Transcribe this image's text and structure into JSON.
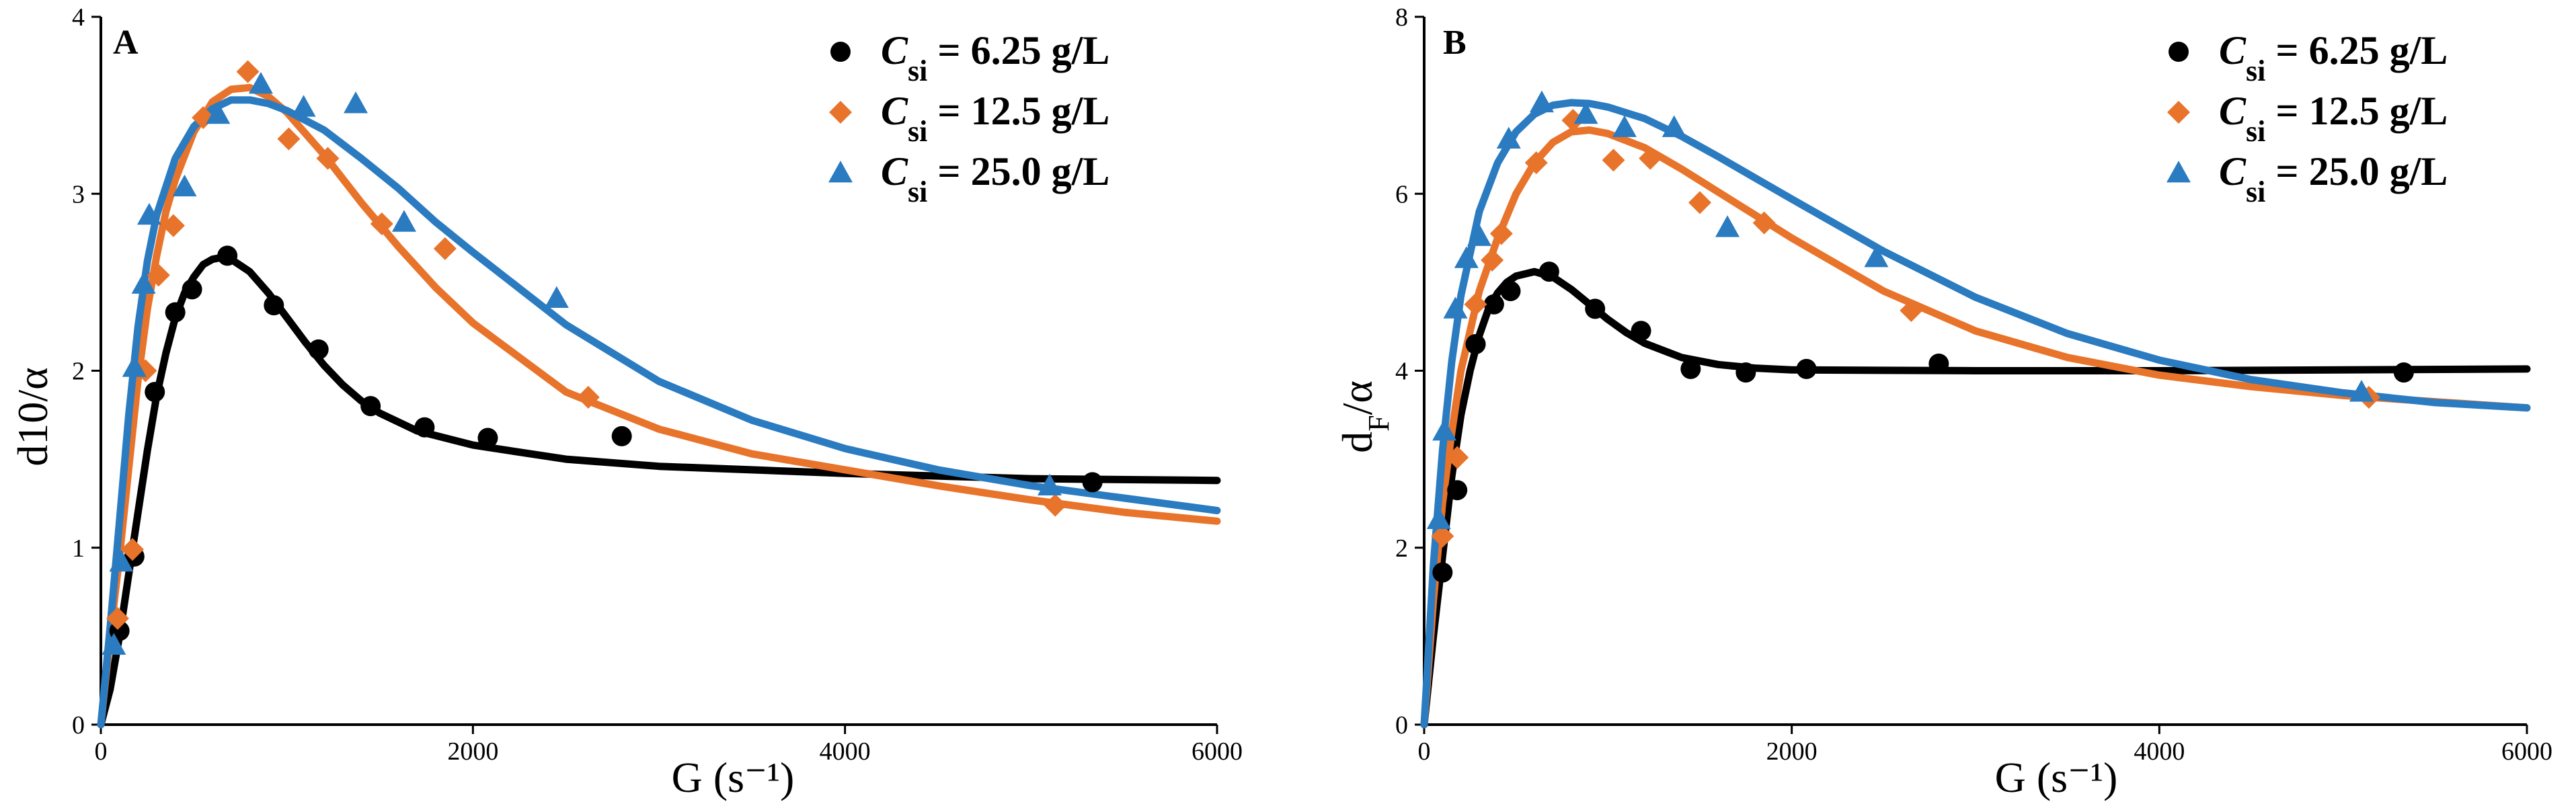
{
  "chart_data": [
    {
      "panel": "A",
      "type": "scatter",
      "xlabel": "G (s⁻¹)",
      "ylabel": "d10/α",
      "xlim": [
        0,
        6000
      ],
      "ylim": [
        0,
        4
      ],
      "xticks": [
        0,
        2000,
        4000,
        6000
      ],
      "yticks": [
        0,
        1,
        2,
        3,
        4
      ],
      "legend_position": "top-right",
      "series": [
        {
          "name": "Csi = 6.25 g/L",
          "legend": {
            "symbol": "C",
            "sub": "si",
            "rest": " = 6.25 g/L"
          },
          "color": "#000000",
          "marker": "circle",
          "points": [
            [
              100,
              0.53
            ],
            [
              180,
              0.95
            ],
            [
              290,
              1.88
            ],
            [
              400,
              2.33
            ],
            [
              490,
              2.46
            ],
            [
              680,
              2.65
            ],
            [
              930,
              2.37
            ],
            [
              1170,
              2.12
            ],
            [
              1450,
              1.8
            ],
            [
              1740,
              1.68
            ],
            [
              2080,
              1.62
            ],
            [
              2800,
              1.63
            ],
            [
              5330,
              1.37
            ]
          ],
          "fit": [
            [
              0,
              0
            ],
            [
              50,
              0.2
            ],
            [
              100,
              0.5
            ],
            [
              150,
              0.85
            ],
            [
              200,
              1.2
            ],
            [
              250,
              1.55
            ],
            [
              300,
              1.86
            ],
            [
              350,
              2.1
            ],
            [
              400,
              2.3
            ],
            [
              450,
              2.44
            ],
            [
              500,
              2.53
            ],
            [
              550,
              2.6
            ],
            [
              600,
              2.63
            ],
            [
              650,
              2.64
            ],
            [
              700,
              2.63
            ],
            [
              800,
              2.56
            ],
            [
              900,
              2.44
            ],
            [
              1000,
              2.3
            ],
            [
              1100,
              2.16
            ],
            [
              1200,
              2.03
            ],
            [
              1300,
              1.92
            ],
            [
              1400,
              1.83
            ],
            [
              1500,
              1.76
            ],
            [
              1700,
              1.66
            ],
            [
              2000,
              1.58
            ],
            [
              2500,
              1.5
            ],
            [
              3000,
              1.46
            ],
            [
              4000,
              1.42
            ],
            [
              5000,
              1.39
            ],
            [
              6000,
              1.38
            ]
          ]
        },
        {
          "name": "Csi = 12.5 g/L",
          "legend": {
            "symbol": "C",
            "sub": "si",
            "rest": " = 12.5 g/L"
          },
          "color": "#e8732a",
          "marker": "diamond",
          "points": [
            [
              90,
              0.6
            ],
            [
              170,
              0.99
            ],
            [
              240,
              2.0
            ],
            [
              310,
              2.54
            ],
            [
              390,
              2.82
            ],
            [
              550,
              3.43
            ],
            [
              790,
              3.69
            ],
            [
              1010,
              3.31
            ],
            [
              1220,
              3.2
            ],
            [
              1510,
              2.83
            ],
            [
              1850,
              2.69
            ],
            [
              2620,
              1.85
            ],
            [
              5130,
              1.24
            ]
          ],
          "fit": [
            [
              0,
              0
            ],
            [
              50,
              0.5
            ],
            [
              100,
              0.95
            ],
            [
              150,
              1.45
            ],
            [
              200,
              1.95
            ],
            [
              250,
              2.35
            ],
            [
              300,
              2.65
            ],
            [
              350,
              2.9
            ],
            [
              400,
              3.08
            ],
            [
              500,
              3.35
            ],
            [
              600,
              3.52
            ],
            [
              700,
              3.59
            ],
            [
              800,
              3.6
            ],
            [
              900,
              3.55
            ],
            [
              1000,
              3.46
            ],
            [
              1200,
              3.22
            ],
            [
              1400,
              2.95
            ],
            [
              1600,
              2.7
            ],
            [
              1800,
              2.47
            ],
            [
              2000,
              2.27
            ],
            [
              2500,
              1.88
            ],
            [
              3000,
              1.67
            ],
            [
              3500,
              1.53
            ],
            [
              4000,
              1.44
            ],
            [
              4500,
              1.35
            ],
            [
              5000,
              1.27
            ],
            [
              5500,
              1.2
            ],
            [
              6000,
              1.15
            ]
          ]
        },
        {
          "name": "Csi = 25.0 g/L",
          "legend": {
            "symbol": "C",
            "sub": "si",
            "rest": " = 25.0 g/L"
          },
          "color": "#2b7bc1",
          "marker": "triangle",
          "points": [
            [
              70,
              0.45
            ],
            [
              110,
              0.92
            ],
            [
              180,
              2.02
            ],
            [
              230,
              2.49
            ],
            [
              260,
              2.88
            ],
            [
              450,
              3.04
            ],
            [
              630,
              3.45
            ],
            [
              860,
              3.62
            ],
            [
              1090,
              3.49
            ],
            [
              1370,
              3.51
            ],
            [
              1630,
              2.84
            ],
            [
              2450,
              2.41
            ],
            [
              5100,
              1.35
            ]
          ],
          "fit": [
            [
              0,
              0
            ],
            [
              50,
              0.55
            ],
            [
              100,
              1.15
            ],
            [
              150,
              1.75
            ],
            [
              200,
              2.25
            ],
            [
              250,
              2.62
            ],
            [
              300,
              2.88
            ],
            [
              400,
              3.2
            ],
            [
              500,
              3.38
            ],
            [
              600,
              3.48
            ],
            [
              700,
              3.53
            ],
            [
              800,
              3.53
            ],
            [
              900,
              3.51
            ],
            [
              1000,
              3.47
            ],
            [
              1200,
              3.36
            ],
            [
              1400,
              3.2
            ],
            [
              1600,
              3.03
            ],
            [
              1800,
              2.84
            ],
            [
              2000,
              2.67
            ],
            [
              2500,
              2.26
            ],
            [
              3000,
              1.94
            ],
            [
              3500,
              1.72
            ],
            [
              4000,
              1.56
            ],
            [
              4500,
              1.44
            ],
            [
              5000,
              1.35
            ],
            [
              5500,
              1.28
            ],
            [
              6000,
              1.21
            ]
          ]
        }
      ]
    },
    {
      "panel": "B",
      "type": "scatter",
      "xlabel": "G (s⁻¹)",
      "ylabel": "dF/α",
      "ylabel_parts": {
        "main": "d",
        "sub": "F",
        "rest": "/α"
      },
      "xlim": [
        0,
        6000
      ],
      "ylim": [
        0,
        8
      ],
      "xticks": [
        0,
        2000,
        4000,
        6000
      ],
      "yticks": [
        0,
        2,
        4,
        6,
        8
      ],
      "legend_position": "top-right",
      "series": [
        {
          "name": "Csi = 6.25 g/L",
          "legend": {
            "symbol": "C",
            "sub": "si",
            "rest": " = 6.25 g/L"
          },
          "color": "#000000",
          "marker": "circle",
          "points": [
            [
              100,
              1.72
            ],
            [
              180,
              2.65
            ],
            [
              280,
              4.3
            ],
            [
              380,
              4.75
            ],
            [
              470,
              4.9
            ],
            [
              680,
              5.12
            ],
            [
              930,
              4.7
            ],
            [
              1180,
              4.45
            ],
            [
              1450,
              4.02
            ],
            [
              1750,
              3.98
            ],
            [
              2080,
              4.02
            ],
            [
              2800,
              4.08
            ],
            [
              5330,
              3.98
            ]
          ],
          "fit": [
            [
              0,
              0
            ],
            [
              50,
              1.0
            ],
            [
              100,
              1.9
            ],
            [
              150,
              2.8
            ],
            [
              200,
              3.5
            ],
            [
              250,
              4.0
            ],
            [
              300,
              4.4
            ],
            [
              350,
              4.7
            ],
            [
              400,
              4.88
            ],
            [
              450,
              5.0
            ],
            [
              500,
              5.07
            ],
            [
              600,
              5.12
            ],
            [
              700,
              5.06
            ],
            [
              800,
              4.92
            ],
            [
              900,
              4.75
            ],
            [
              1000,
              4.58
            ],
            [
              1100,
              4.43
            ],
            [
              1200,
              4.31
            ],
            [
              1400,
              4.15
            ],
            [
              1600,
              4.07
            ],
            [
              1800,
              4.03
            ],
            [
              2000,
              4.01
            ],
            [
              3000,
              4.0
            ],
            [
              4000,
              4.0
            ],
            [
              6000,
              4.02
            ]
          ]
        },
        {
          "name": "Csi = 12.5 g/L",
          "legend": {
            "symbol": "C",
            "sub": "si",
            "rest": " = 12.5 g/L"
          },
          "color": "#e8732a",
          "marker": "diamond",
          "points": [
            [
              100,
              2.13
            ],
            [
              180,
              3.02
            ],
            [
              280,
              4.75
            ],
            [
              370,
              5.25
            ],
            [
              420,
              5.55
            ],
            [
              610,
              6.35
            ],
            [
              810,
              6.83
            ],
            [
              1030,
              6.38
            ],
            [
              1230,
              6.4
            ],
            [
              1500,
              5.9
            ],
            [
              1850,
              5.67
            ],
            [
              2650,
              4.68
            ],
            [
              5140,
              3.7
            ]
          ],
          "fit": [
            [
              0,
              0
            ],
            [
              50,
              1.4
            ],
            [
              100,
              2.5
            ],
            [
              150,
              3.3
            ],
            [
              200,
              4.0
            ],
            [
              300,
              4.9
            ],
            [
              400,
              5.5
            ],
            [
              500,
              6.0
            ],
            [
              600,
              6.35
            ],
            [
              700,
              6.58
            ],
            [
              800,
              6.7
            ],
            [
              900,
              6.72
            ],
            [
              1000,
              6.68
            ],
            [
              1200,
              6.52
            ],
            [
              1400,
              6.28
            ],
            [
              1600,
              6.02
            ],
            [
              1800,
              5.76
            ],
            [
              2000,
              5.5
            ],
            [
              2500,
              4.9
            ],
            [
              3000,
              4.45
            ],
            [
              3500,
              4.15
            ],
            [
              4000,
              3.95
            ],
            [
              4500,
              3.82
            ],
            [
              5000,
              3.72
            ],
            [
              5500,
              3.65
            ],
            [
              6000,
              3.58
            ]
          ]
        },
        {
          "name": "Csi = 25.0 g/L",
          "legend": {
            "symbol": "C",
            "sub": "si",
            "rest": " = 25.0 g/L"
          },
          "color": "#2b7bc1",
          "marker": "triangle",
          "points": [
            [
              80,
              2.32
            ],
            [
              110,
              3.32
            ],
            [
              170,
              4.7
            ],
            [
              230,
              5.27
            ],
            [
              300,
              5.52
            ],
            [
              460,
              6.62
            ],
            [
              640,
              7.03
            ],
            [
              880,
              6.9
            ],
            [
              1090,
              6.75
            ],
            [
              1360,
              6.75
            ],
            [
              1650,
              5.62
            ],
            [
              2460,
              5.28
            ],
            [
              5100,
              3.76
            ]
          ],
          "fit": [
            [
              0,
              0
            ],
            [
              50,
              1.8
            ],
            [
              100,
              3.1
            ],
            [
              150,
              4.1
            ],
            [
              200,
              4.85
            ],
            [
              300,
              5.8
            ],
            [
              400,
              6.35
            ],
            [
              500,
              6.7
            ],
            [
              600,
              6.9
            ],
            [
              700,
              7.0
            ],
            [
              800,
              7.03
            ],
            [
              900,
              7.02
            ],
            [
              1000,
              6.98
            ],
            [
              1200,
              6.85
            ],
            [
              1400,
              6.65
            ],
            [
              1600,
              6.42
            ],
            [
              1800,
              6.18
            ],
            [
              2000,
              5.94
            ],
            [
              2500,
              5.35
            ],
            [
              3000,
              4.83
            ],
            [
              3500,
              4.42
            ],
            [
              4000,
              4.12
            ],
            [
              4500,
              3.9
            ],
            [
              5000,
              3.75
            ],
            [
              5500,
              3.64
            ],
            [
              6000,
              3.58
            ]
          ]
        }
      ]
    }
  ]
}
